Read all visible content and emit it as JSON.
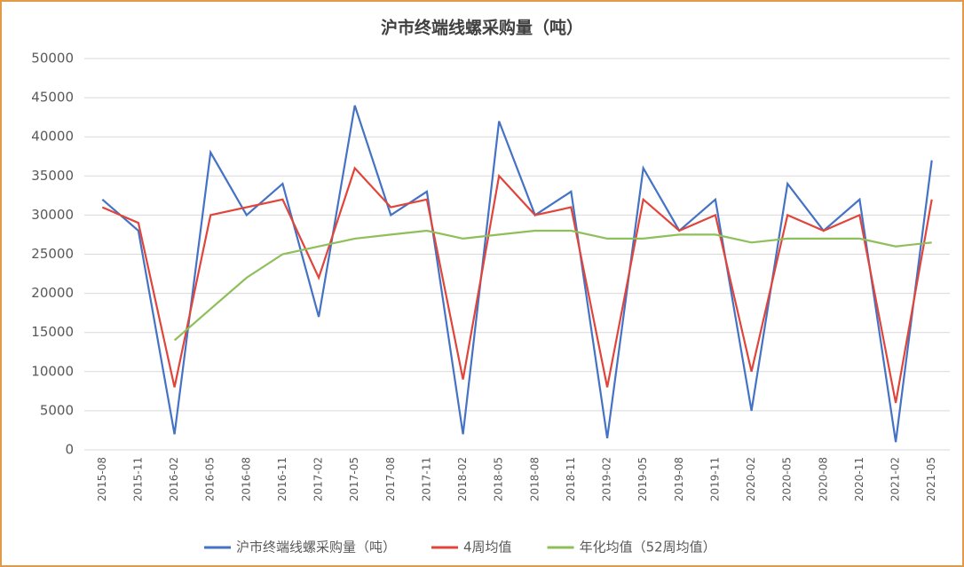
{
  "chart_data": {
    "type": "line",
    "title": "沪市终端线螺采购量（吨）",
    "categories": [
      "2015-08",
      "2015-11",
      "2016-02",
      "2016-05",
      "2016-08",
      "2016-11",
      "2017-02",
      "2017-05",
      "2017-08",
      "2017-11",
      "2018-02",
      "2018-05",
      "2018-08",
      "2018-11",
      "2019-02",
      "2019-05",
      "2019-08",
      "2019-11",
      "2020-02",
      "2020-05",
      "2020-08",
      "2020-11",
      "2021-02",
      "2021-05"
    ],
    "series": [
      {
        "name": "沪市终端线螺采购量（吨）",
        "color": "#4472c4",
        "values": [
          32000,
          28000,
          2000,
          38000,
          30000,
          34000,
          17000,
          44000,
          30000,
          33000,
          2000,
          42000,
          30000,
          33000,
          1500,
          36000,
          28000,
          32000,
          5000,
          34000,
          28000,
          32000,
          1000,
          37000
        ]
      },
      {
        "name": "4周均值",
        "color": "#e0443a",
        "values": [
          31000,
          29000,
          8000,
          30000,
          31000,
          32000,
          22000,
          36000,
          31000,
          32000,
          9000,
          35000,
          30000,
          31000,
          8000,
          32000,
          28000,
          30000,
          10000,
          30000,
          28000,
          30000,
          6000,
          32000
        ]
      },
      {
        "name": "年化均值（52周均值）",
        "color": "#8fbf5a",
        "values": [
          null,
          null,
          14000,
          18000,
          22000,
          25000,
          26000,
          27000,
          27500,
          28000,
          27000,
          27500,
          28000,
          28000,
          27000,
          27000,
          27500,
          27500,
          26500,
          27000,
          27000,
          27000,
          26000,
          26500
        ]
      }
    ],
    "ylim": [
      0,
      50000
    ],
    "yticks": [
      0,
      5000,
      10000,
      15000,
      20000,
      25000,
      30000,
      35000,
      40000,
      45000,
      50000
    ],
    "grid": true
  }
}
